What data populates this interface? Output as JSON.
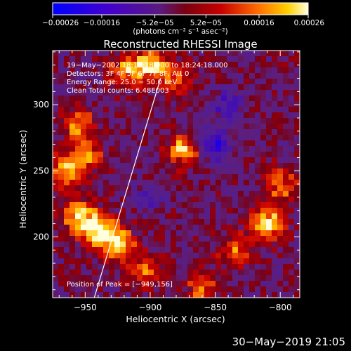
{
  "chart_data": {
    "type": "heatmap",
    "title": "Reconstructed RHESSI Image",
    "xlabel": "Heliocentric X (arcsec)",
    "ylabel": "Heliocentric Y (arcsec)",
    "xlim": [
      -975,
      -785
    ],
    "ylim": [
      154,
      341
    ],
    "x_ticks": [
      -950,
      -900,
      -850,
      -800
    ],
    "x_tick_labels": [
      "−950",
      "−900",
      "−850",
      "−800"
    ],
    "y_ticks": [
      200,
      250,
      300
    ],
    "y_tick_labels": [
      "200",
      "250",
      "300"
    ],
    "colorbar": {
      "min": -0.00026,
      "max": 0.00026,
      "ticks": [
        -0.00026,
        -0.00016,
        -5.2e-05,
        5.2e-05,
        0.00016,
        0.00026
      ],
      "tick_labels": [
        "−0.00026",
        "−0.00016",
        "−5.2e−05",
        "5.2e−05",
        "0.00016",
        "0.00026"
      ],
      "units_label": "(photons cm⁻² s⁻¹ asec⁻²)"
    },
    "annotations": [
      "19−May−2002 18:18:18.000 to 18:24:18.000",
      "Detectors: 3F 4F 5F 6F 7F 8F, Att 0",
      "Energy Range: 25.0 − 50.0 keV",
      "Clean    Total counts: 6.48E003",
      "Position of Peak = [−949,156]"
    ],
    "limb_line": {
      "x1": -943,
      "y1": 154,
      "x2": -892,
      "y2": 320
    },
    "bright_regions": [
      {
        "x": -940,
        "y": 205,
        "level": 0.95
      },
      {
        "x": -925,
        "y": 195,
        "level": 0.8
      },
      {
        "x": -955,
        "y": 215,
        "level": 0.75
      },
      {
        "x": -965,
        "y": 250,
        "level": 0.7
      },
      {
        "x": -948,
        "y": 262,
        "level": 0.55
      },
      {
        "x": -955,
        "y": 285,
        "level": 0.55
      },
      {
        "x": -900,
        "y": 330,
        "level": 0.85
      },
      {
        "x": -920,
        "y": 325,
        "level": 0.6
      },
      {
        "x": -875,
        "y": 265,
        "level": 0.7
      },
      {
        "x": -880,
        "y": 320,
        "level": 0.45
      },
      {
        "x": -810,
        "y": 210,
        "level": 0.85
      },
      {
        "x": -800,
        "y": 240,
        "level": 0.6
      },
      {
        "x": -835,
        "y": 190,
        "level": 0.45
      },
      {
        "x": -860,
        "y": 160,
        "level": 0.5
      },
      {
        "x": -905,
        "y": 175,
        "level": 0.5
      }
    ],
    "dim_regions": [
      {
        "x": -850,
        "y": 270,
        "level": -0.6
      },
      {
        "x": -840,
        "y": 300,
        "level": -0.4
      },
      {
        "x": -900,
        "y": 230,
        "level": -0.25
      }
    ]
  },
  "footer": {
    "timestamp": "30−May−2019 21:05"
  }
}
